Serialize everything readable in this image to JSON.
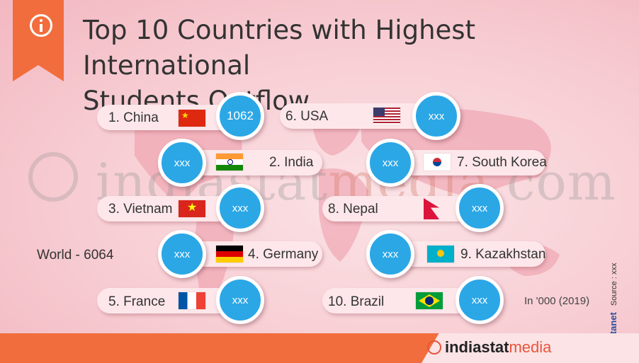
{
  "header": {
    "title_line1": "Top 10 Countries with Highest International",
    "title_line2": "Students Outflow",
    "icon": "info-icon"
  },
  "watermark": {
    "text_main": "indiastat",
    "text_accent": "media",
    "text_tail": ".com"
  },
  "countries": [
    {
      "label": "1. China",
      "value": "1062"
    },
    {
      "label": "2. India",
      "value": "xxx"
    },
    {
      "label": "3. Vietnam",
      "value": "xxx"
    },
    {
      "label": "4. Germany",
      "value": "xxx"
    },
    {
      "label": "5. France",
      "value": "xxx"
    },
    {
      "label": "6. USA",
      "value": "xxx"
    },
    {
      "label": "7. South Korea",
      "value": "xxx"
    },
    {
      "label": "8. Nepal",
      "value": "xxx"
    },
    {
      "label": "9. Kazakhstan",
      "value": "xxx"
    },
    {
      "label": "10. Brazil",
      "value": "xxx"
    }
  ],
  "world_total": "World - 6064",
  "unit_note": "In '000 (2019)",
  "side_brand": "Datanet",
  "side_source": "Source : xxx",
  "side_copyright": "©",
  "footer": {
    "brand_main": "indiastat",
    "brand_accent": "media"
  },
  "colors": {
    "accent": "#f26d3d",
    "circle": "#2ba7e6",
    "pill": "#fde7ea"
  }
}
